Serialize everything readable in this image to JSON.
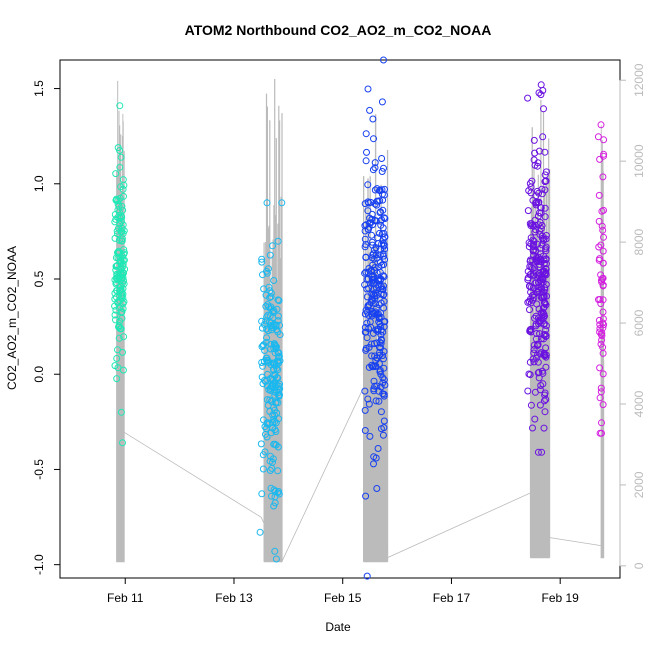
{
  "chart_data": {
    "type": "scatter",
    "title": "ATOM2 Northbound CO2_AO2_m_CO2_NOAA",
    "xlabel": "Date",
    "ylabel": "CO2_AO2_m_CO2_NOAA",
    "x_unit": "days since Feb 10 00:00",
    "xlim": [
      -0.2,
      10.1
    ],
    "ylim": [
      -1.07,
      1.65
    ],
    "y_ticks": [
      -1.0,
      -0.5,
      0.0,
      0.5,
      1.0,
      1.5
    ],
    "y_tick_labels": [
      "-1.0",
      "-0.5",
      "0.0",
      "0.5",
      "1.0",
      "1.5"
    ],
    "x_ticks": [
      1,
      3,
      5,
      7,
      9
    ],
    "x_tick_labels": [
      "Feb 11",
      "Feb 13",
      "Feb 15",
      "Feb 17",
      "Feb 19"
    ],
    "y2_ticks": [
      0,
      2000,
      4000,
      6000,
      8000,
      10000,
      12000
    ],
    "y2_tick_labels": [
      "0",
      "2000",
      "4000",
      "6000",
      "8000",
      "10000",
      "12000"
    ],
    "y2lim": [
      -300,
      12500
    ],
    "line_color": "#bbbbbb",
    "grid": false,
    "legend": "none",
    "flights": [
      {
        "color": "#1fe8b5",
        "x_range": [
          0.8,
          0.99
        ],
        "y_center": 0.55,
        "y_sd": 0.25,
        "y_min": -0.36,
        "y_max": 1.41,
        "n": 140,
        "outliers": [
          [
            0.9,
            1.41
          ],
          [
            0.87,
            1.19
          ],
          [
            0.95,
            -0.36
          ],
          [
            0.93,
            -0.2
          ]
        ]
      },
      {
        "color": "#1ab8ef",
        "x_range": [
          3.5,
          3.85
        ],
        "y_center": 0.0,
        "y_sd": 0.3,
        "y_min": -0.97,
        "y_max": 0.9,
        "n": 190,
        "outliers": [
          [
            3.48,
            -0.83
          ],
          [
            3.88,
            0.9
          ],
          [
            3.78,
            -0.97
          ],
          [
            3.75,
            -0.93
          ]
        ]
      },
      {
        "color": "#1740f0",
        "x_range": [
          5.4,
          5.78
        ],
        "y_center": 0.45,
        "y_sd": 0.35,
        "y_min": -1.06,
        "y_max": 1.65,
        "n": 260,
        "outliers": [
          [
            5.45,
            -1.06
          ],
          [
            5.42,
            -0.64
          ],
          [
            5.75,
            1.65
          ],
          [
            5.73,
            1.43
          ],
          [
            5.65,
            -0.39
          ]
        ]
      },
      {
        "color": "#6a12e0",
        "x_range": [
          8.4,
          8.75
        ],
        "y_center": 0.5,
        "y_sd": 0.35,
        "y_min": -0.41,
        "y_max": 1.52,
        "n": 260,
        "outliers": [
          [
            8.4,
            1.45
          ],
          [
            8.65,
            1.52
          ],
          [
            8.68,
            1.49
          ],
          [
            8.6,
            -0.41
          ]
        ]
      },
      {
        "color": "#d41ee0",
        "x_range": [
          9.7,
          9.8
        ],
        "y_center": 0.5,
        "y_sd": 0.35,
        "y_min": -0.31,
        "y_max": 1.31,
        "n": 55,
        "outliers": [
          [
            9.75,
            1.31
          ],
          [
            9.76,
            -0.31
          ]
        ]
      }
    ],
    "altitude_line": {
      "series_axis": "right",
      "segments": [
        {
          "x": [
            0.84,
            0.98
          ],
          "low": 100,
          "high": 12000
        },
        {
          "x": [
            3.55,
            3.88
          ],
          "low": 100,
          "high": 12200
        },
        {
          "x": [
            5.38,
            5.82
          ],
          "low": 100,
          "high": 11500
        },
        {
          "x": [
            8.45,
            8.8
          ],
          "low": 200,
          "high": 11800
        },
        {
          "x": [
            9.75,
            9.8
          ],
          "low": 200,
          "high": 10900
        }
      ],
      "connectors": [
        [
          0.98,
          3300
        ],
        [
          3.5,
          1200
        ],
        [
          3.88,
          100
        ],
        [
          5.38,
          4400
        ],
        [
          5.82,
          200
        ],
        [
          8.45,
          1800
        ],
        [
          8.8,
          700
        ],
        [
          9.75,
          500
        ]
      ]
    }
  }
}
